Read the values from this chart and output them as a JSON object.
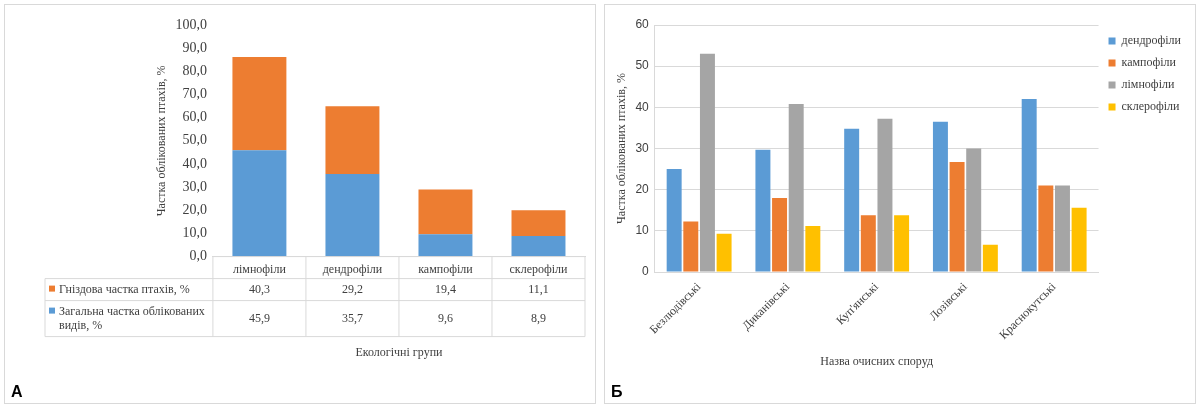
{
  "chart_data": [
    {
      "type": "bar",
      "stacked": true,
      "ylabel": "Частка облікованих птахів, %",
      "xlabel": "Екологічні групи",
      "categories": [
        "лімнофіли",
        "дендрофіли",
        "кампофіли",
        "склерофіли"
      ],
      "series": [
        {
          "name": "Загальна частка облікованих видів, %",
          "color": "#5b9bd5",
          "values": [
            45.9,
            35.7,
            9.6,
            8.9
          ],
          "value_labels": [
            "45,9",
            "35,7",
            "9,6",
            "8,9"
          ]
        },
        {
          "name": "Гніздова частка птахів, %",
          "color": "#ed7d31",
          "values": [
            40.3,
            29.2,
            19.4,
            11.1
          ],
          "value_labels": [
            "40,3",
            "29,2",
            "19,4",
            "11,1"
          ]
        }
      ],
      "ylim": [
        0,
        100
      ],
      "yticks": [
        {
          "value": 0,
          "label": "0,0"
        },
        {
          "value": 10,
          "label": "10,0"
        },
        {
          "value": 20,
          "label": "20,0"
        },
        {
          "value": 30,
          "label": "30,0"
        },
        {
          "value": 40,
          "label": "40,0"
        },
        {
          "value": 50,
          "label": "50,0"
        },
        {
          "value": 60,
          "label": "60,0"
        },
        {
          "value": 70,
          "label": "70,0"
        },
        {
          "value": 80,
          "label": "80,0"
        },
        {
          "value": 90,
          "label": "90,0"
        },
        {
          "value": 100,
          "label": "100,0"
        }
      ],
      "grid": false,
      "legend": "bottom",
      "annotations": [
        "А"
      ]
    },
    {
      "type": "bar",
      "ylabel": "Частка облікованих птахів, %",
      "xlabel": "Назва очисних споруд",
      "categories": [
        "Безлюдівські",
        "Диканівські",
        "Куп'янські",
        "Лозівські",
        "Краснокутські"
      ],
      "series": [
        {
          "name": "дендрофіли",
          "color": "#5b9bd5",
          "values": [
            25,
            29.7,
            34.8,
            36.5,
            42
          ]
        },
        {
          "name": "кампофіли",
          "color": "#ed7d31",
          "values": [
            12.3,
            18,
            13.8,
            26.7,
            21
          ]
        },
        {
          "name": "лімнофіли",
          "color": "#a5a5a5",
          "values": [
            53,
            40.8,
            37.2,
            30,
            21
          ]
        },
        {
          "name": "склерофіли",
          "color": "#ffc000",
          "values": [
            9.3,
            11.2,
            13.8,
            6.6,
            15.6
          ]
        }
      ],
      "ylim": [
        0,
        60
      ],
      "yticks": [
        0,
        10,
        20,
        30,
        40,
        50,
        60
      ],
      "grid": "y",
      "legend": "top right",
      "annotations": [
        "Б"
      ]
    }
  ]
}
